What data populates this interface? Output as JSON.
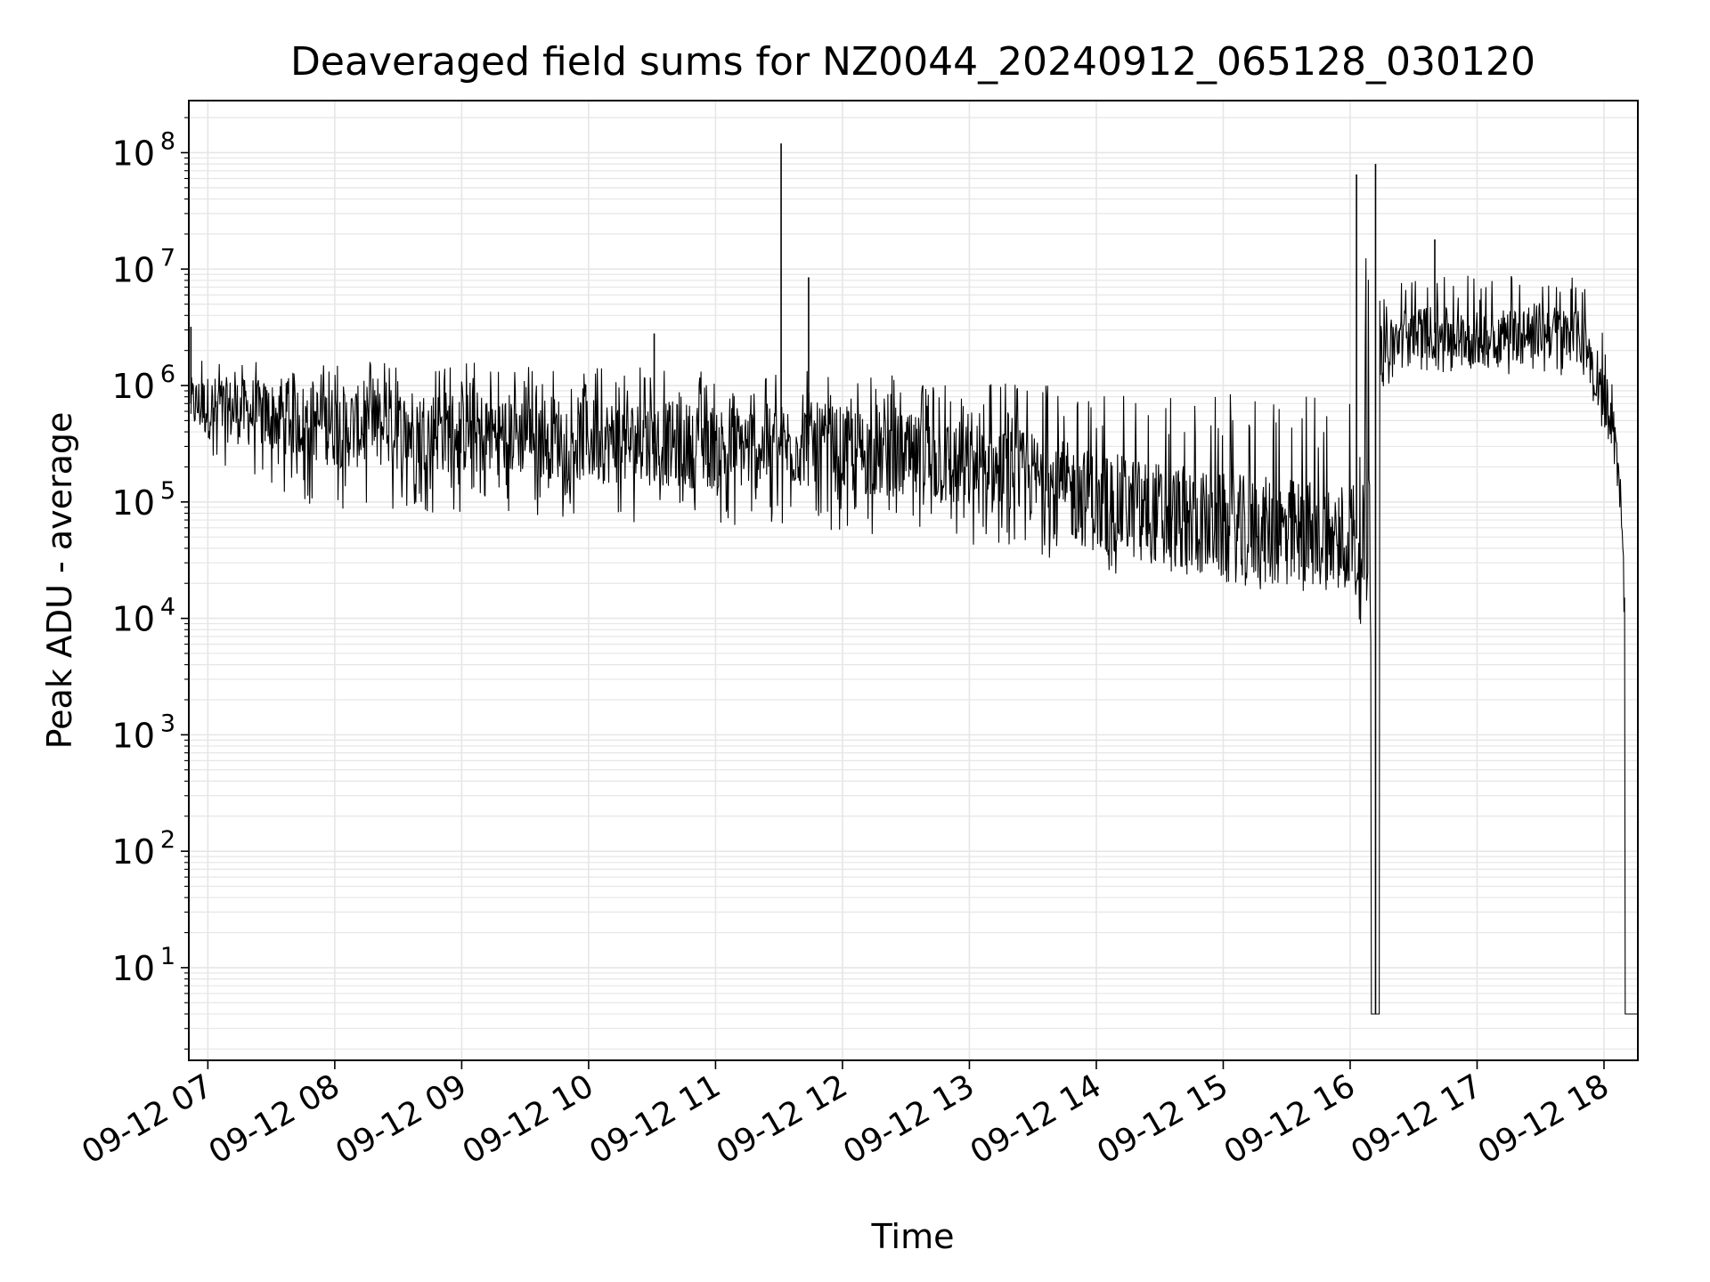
{
  "chart_data": {
    "type": "line",
    "title": "Deaveraged field sums for NZ0044_20240912_065128_030120",
    "xlabel": "Time",
    "ylabel": "Peak ADU - average",
    "y_scale": "log",
    "ylim": [
      1.6,
      280000000
    ],
    "xlim": [
      "2024-09-12 06:51",
      "2024-09-12 18:16"
    ],
    "x_tick_labels": [
      "09-12 07",
      "09-12 08",
      "09-12 09",
      "09-12 10",
      "09-12 11",
      "09-12 12",
      "09-12 13",
      "09-12 14",
      "09-12 15",
      "09-12 16",
      "09-12 17",
      "09-12 18"
    ],
    "y_tick_labels": [
      {
        "base": "10",
        "exp": "1"
      },
      {
        "base": "10",
        "exp": "2"
      },
      {
        "base": "10",
        "exp": "3"
      },
      {
        "base": "10",
        "exp": "4"
      },
      {
        "base": "10",
        "exp": "5"
      },
      {
        "base": "10",
        "exp": "6"
      },
      {
        "base": "10",
        "exp": "7"
      },
      {
        "base": "10",
        "exp": "8"
      }
    ],
    "grid": true,
    "line_color": "#000000",
    "grid_color": "#e6e6e6",
    "series": [
      {
        "x": [
          "2024-09-12 06:52",
          "2024-09-12 07:00",
          "2024-09-12 07:30",
          "2024-09-12 08:00",
          "2024-09-12 08:30",
          "2024-09-12 09:00",
          "2024-09-12 09:30",
          "2024-09-12 10:00",
          "2024-09-12 10:30",
          "2024-09-12 11:00",
          "2024-09-12 11:30",
          "2024-09-12 11:45",
          "2024-09-12 12:00",
          "2024-09-12 12:30",
          "2024-09-12 13:00",
          "2024-09-12 13:30",
          "2024-09-12 14:00",
          "2024-09-12 14:30",
          "2024-09-12 15:00",
          "2024-09-12 15:30",
          "2024-09-12 16:00",
          "2024-09-12 16:10",
          "2024-09-12 16:12",
          "2024-09-12 16:14",
          "2024-09-12 16:30",
          "2024-09-12 17:00",
          "2024-09-12 17:30",
          "2024-09-12 17:50",
          "2024-09-12 18:00",
          "2024-09-12 18:05",
          "2024-09-12 18:08",
          "2024-09-12 18:10",
          "2024-09-12 18:12",
          "2024-09-12 18:16"
        ],
        "y": [
          700000,
          650000,
          550000,
          450000,
          420000,
          400000,
          380000,
          340000,
          320000,
          300000,
          300000,
          310000,
          280000,
          240000,
          200000,
          160000,
          100000,
          80000,
          60000,
          55000,
          50000,
          45000,
          4,
          2000000,
          3000000,
          2500000,
          3000000,
          2500000,
          900000,
          400000,
          100000,
          8000,
          4,
          4
        ],
        "min": [
          300000,
          200000,
          120000,
          80000,
          80000,
          80000,
          75000,
          70000,
          65000,
          60000,
          60000,
          62000,
          55000,
          50000,
          40000,
          35000,
          25000,
          22000,
          18000,
          17000,
          15000,
          15000,
          4,
          900000,
          1300000,
          1200000,
          1300000,
          1100000,
          400000,
          200000,
          50000,
          3000,
          4,
          4
        ],
        "max": [
          2000000,
          2000000,
          1500000,
          1600000,
          1600000,
          1700000,
          1500000,
          1600000,
          1400000,
          1400000,
          1300000,
          1400000,
          1300000,
          1200000,
          1100000,
          1000000,
          1000000,
          950000,
          900000,
          850000,
          800000,
          60000000,
          4,
          6000000,
          9000000,
          9000000,
          10000000,
          8000000,
          3500000,
          800000,
          200000,
          20000,
          4,
          4
        ]
      }
    ],
    "spikes": [
      {
        "x": "2024-09-12 06:52",
        "y": 3200000
      },
      {
        "x": "2024-09-12 10:31",
        "y": 2800000
      },
      {
        "x": "2024-09-12 11:31",
        "y": 120000000
      },
      {
        "x": "2024-09-12 11:44",
        "y": 8500000
      },
      {
        "x": "2024-09-12 16:03",
        "y": 65000000
      },
      {
        "x": "2024-09-12 16:12",
        "y": 80000000
      },
      {
        "x": "2024-09-12 16:40",
        "y": 18000000
      }
    ]
  }
}
